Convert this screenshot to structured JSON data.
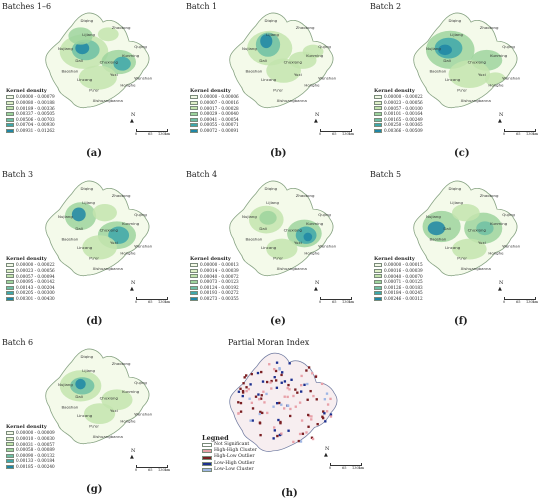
{
  "legend_title": "Kernel density",
  "legend_colors": [
    "#f2f8e6",
    "#dff0c8",
    "#c3e4ae",
    "#9ed49d",
    "#6fbfa5",
    "#3ea7aa",
    "#1f86a6"
  ],
  "north_label": "N",
  "scale_ticks": [
    "0",
    "65",
    "130km"
  ],
  "cities": [
    "Diqing",
    "Zhaotong",
    "Lijiang",
    "Nujiang",
    "Dali",
    "Chuxiong",
    "Kunming",
    "Qujing",
    "Baoshan",
    "Yuxi",
    "Wenshan",
    "Lincang",
    "Pu'er",
    "Honghe",
    "Xishuangbanna"
  ],
  "panels": [
    {
      "title": "Batches 1–6",
      "label": "(a)",
      "legend": [
        "0.00000 - 0.00079",
        "0.00080 - 0.00188",
        "0.00189 - 0.00336",
        "0.00337 - 0.00505",
        "0.00506 - 0.00703",
        "0.00704 - 0.00930",
        "0.00931 - 0.01262"
      ]
    },
    {
      "title": "Batch 1",
      "label": "(b)",
      "legend": [
        "0.00000 - 0.00006",
        "0.00007 - 0.00016",
        "0.00017 - 0.00028",
        "0.00029 - 0.00040",
        "0.00041 - 0.00054",
        "0.00055 - 0.00071",
        "0.00072 - 0.00091"
      ]
    },
    {
      "title": "Batch 2",
      "label": "(c)",
      "legend": [
        "0.00000 - 0.00022",
        "0.00023 - 0.00056",
        "0.00057 - 0.00100",
        "0.00101 - 0.00164",
        "0.00165 - 0.00249",
        "0.00250 - 0.00365",
        "0.00366 - 0.00509"
      ]
    },
    {
      "title": "Batch 3",
      "label": "(d)",
      "legend": [
        "0.00000 - 0.00022",
        "0.00023 - 0.00056",
        "0.00057 - 0.00094",
        "0.00095 - 0.00142",
        "0.00143 - 0.00204",
        "0.00205 - 0.00300",
        "0.00301 - 0.00430"
      ]
    },
    {
      "title": "Batch 4",
      "label": "(e)",
      "legend": [
        "0.00000 - 0.00013",
        "0.00014 - 0.00039",
        "0.00040 - 0.00072",
        "0.00073 - 0.00123",
        "0.00124 - 0.00192",
        "0.00193 - 0.00272",
        "0.00273 - 0.00355"
      ]
    },
    {
      "title": "Batch 5",
      "label": "(f)",
      "legend": [
        "0.00000 - 0.00015",
        "0.00016 - 0.00039",
        "0.00040 - 0.00070",
        "0.00071 - 0.00125",
        "0.00126 - 0.00183",
        "0.00184 - 0.00245",
        "0.00246 - 0.00312"
      ]
    },
    {
      "title": "Batch 6",
      "label": "(g)",
      "legend": [
        "0.00000 - 0.00009",
        "0.00010 - 0.00030",
        "0.00031 - 0.00057",
        "0.00058 - 0.00089",
        "0.00090 - 0.00132",
        "0.00133 - 0.00184",
        "0.00185 - 0.00240"
      ]
    }
  ],
  "moran": {
    "title": "Partial Moran Index",
    "label": "(h)",
    "legend_title": "Legned",
    "items": [
      {
        "name": "Not Significant",
        "color": "#ffffff"
      },
      {
        "name": "High-High Cluster",
        "color": "#e8a0a8"
      },
      {
        "name": "High-Low Outlier",
        "color": "#7a1e22"
      },
      {
        "name": "Low-High Outlier",
        "color": "#1c2f8f"
      },
      {
        "name": "Low-Low Cluster",
        "color": "#9fb6e4"
      }
    ]
  }
}
